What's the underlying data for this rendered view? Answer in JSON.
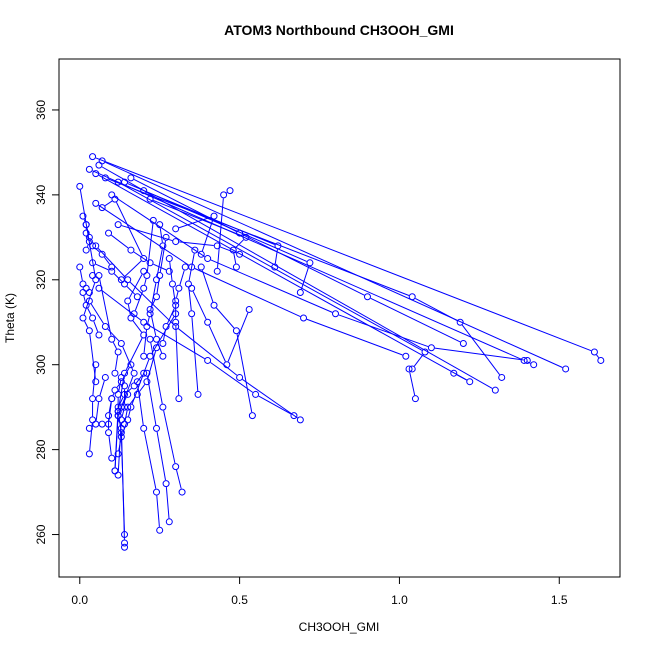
{
  "chart_data": {
    "type": "line",
    "title": "ATOM3 Northbound CH3OOH_GMI",
    "xlabel": "CH3OOH_GMI",
    "ylabel": "Theta (K)",
    "xlim": [
      -0.065,
      1.69
    ],
    "ylim": [
      250,
      372
    ],
    "x_ticks": [
      0.0,
      0.5,
      1.0,
      1.5
    ],
    "x_tick_labels": [
      "0.0",
      "0.5",
      "1.0",
      "1.5"
    ],
    "y_ticks": [
      260,
      280,
      300,
      320,
      340,
      360
    ],
    "y_tick_labels": [
      "260",
      "280",
      "300",
      "320",
      "340",
      "360"
    ],
    "grid": false,
    "series_color": "#0000ff",
    "marker": "open-circle",
    "segments": [
      {
        "points": [
          [
            0.04,
            349
          ],
          [
            1.61,
            303
          ],
          [
            1.63,
            301
          ]
        ]
      },
      {
        "points": [
          [
            0.07,
            348
          ],
          [
            1.52,
            299
          ]
        ]
      },
      {
        "points": [
          [
            0.03,
            346
          ],
          [
            1.39,
            301
          ],
          [
            1.42,
            300
          ]
        ]
      },
      {
        "points": [
          [
            0.06,
            347
          ],
          [
            1.3,
            294
          ]
        ]
      },
      {
        "points": [
          [
            0.05,
            345
          ],
          [
            1.22,
            296
          ],
          [
            1.17,
            298
          ]
        ]
      },
      {
        "points": [
          [
            0.08,
            344
          ],
          [
            1.04,
            316
          ],
          [
            1.19,
            310
          ],
          [
            1.32,
            297
          ]
        ]
      },
      {
        "points": [
          [
            0.12,
            343
          ],
          [
            1.08,
            303
          ],
          [
            1.04,
            299
          ],
          [
            1.03,
            299
          ],
          [
            1.05,
            292
          ]
        ]
      },
      {
        "points": [
          [
            0.14,
            343
          ],
          [
            0.72,
            324
          ],
          [
            0.69,
            317
          ]
        ]
      },
      {
        "points": [
          [
            0.2,
            341
          ],
          [
            0.62,
            328
          ],
          [
            0.61,
            323
          ]
        ]
      },
      {
        "points": [
          [
            0.22,
            339
          ],
          [
            0.52,
            330
          ],
          [
            0.48,
            327
          ],
          [
            0.49,
            323
          ]
        ]
      },
      {
        "points": [
          [
            0.3,
            332
          ],
          [
            0.42,
            335
          ],
          [
            0.38,
            326
          ]
        ]
      },
      {
        "points": [
          [
            0.47,
            341
          ],
          [
            0.45,
            340
          ],
          [
            0.43,
            322
          ]
        ]
      },
      {
        "points": [
          [
            0.0,
            342
          ],
          [
            0.05,
            320
          ],
          [
            0.01,
            311
          ],
          [
            0.03,
            308
          ],
          [
            0.05,
            296
          ]
        ]
      },
      {
        "points": [
          [
            0.01,
            335
          ],
          [
            0.02,
            333
          ],
          [
            0.03,
            330
          ],
          [
            0.04,
            328
          ],
          [
            0.07,
            326
          ],
          [
            0.1,
            323
          ]
        ]
      },
      {
        "points": [
          [
            0.0,
            323
          ],
          [
            0.01,
            319
          ],
          [
            0.02,
            318
          ],
          [
            0.03,
            317
          ]
        ]
      },
      {
        "points": [
          [
            0.07,
            337
          ],
          [
            0.11,
            339
          ],
          [
            0.2,
            325
          ],
          [
            0.13,
            320
          ]
        ]
      },
      {
        "points": [
          [
            0.04,
            321
          ],
          [
            0.06,
            321
          ],
          [
            0.1,
            306
          ],
          [
            0.12,
            303
          ],
          [
            0.11,
            298
          ]
        ]
      },
      {
        "points": [
          [
            0.2,
            322
          ],
          [
            0.15,
            315
          ],
          [
            0.16,
            311
          ],
          [
            0.2,
            307
          ],
          [
            0.14,
            298
          ],
          [
            0.12,
            289
          ]
        ]
      },
      {
        "points": [
          [
            0.23,
            334
          ],
          [
            0.21,
            321
          ],
          [
            0.2,
            318
          ],
          [
            0.17,
            312
          ]
        ]
      },
      {
        "points": [
          [
            0.25,
            333
          ],
          [
            0.26,
            328
          ],
          [
            0.24,
            320
          ],
          [
            0.22,
            312
          ],
          [
            0.21,
            309
          ],
          [
            0.2,
            302
          ]
        ]
      },
      {
        "points": [
          [
            0.27,
            330
          ],
          [
            0.25,
            321
          ],
          [
            0.24,
            316
          ],
          [
            0.22,
            313
          ],
          [
            0.24,
            306
          ],
          [
            0.26,
            302
          ]
        ]
      },
      {
        "points": [
          [
            0.28,
            325
          ],
          [
            0.29,
            319
          ],
          [
            0.3,
            314
          ],
          [
            0.27,
            309
          ],
          [
            0.26,
            305
          ]
        ]
      },
      {
        "points": [
          [
            0.33,
            323
          ],
          [
            0.31,
            318
          ],
          [
            0.3,
            315
          ],
          [
            0.3,
            310
          ],
          [
            0.31,
            292
          ]
        ]
      },
      {
        "points": [
          [
            0.36,
            327
          ],
          [
            0.34,
            319
          ],
          [
            0.35,
            312
          ],
          [
            0.37,
            293
          ]
        ]
      },
      {
        "points": [
          [
            0.38,
            323
          ],
          [
            0.42,
            314
          ],
          [
            0.49,
            308
          ],
          [
            0.54,
            288
          ]
        ]
      },
      {
        "points": [
          [
            0.35,
            318
          ],
          [
            0.4,
            310
          ],
          [
            0.46,
            300
          ],
          [
            0.53,
            313
          ]
        ]
      },
      {
        "points": [
          [
            0.3,
            312
          ],
          [
            0.22,
            302
          ],
          [
            0.16,
            290
          ],
          [
            0.15,
            287
          ],
          [
            0.13,
            283
          ],
          [
            0.12,
            279
          ]
        ]
      },
      {
        "points": [
          [
            0.24,
            304
          ],
          [
            0.21,
            296
          ],
          [
            0.18,
            293
          ],
          [
            0.15,
            290
          ],
          [
            0.14,
            286
          ]
        ]
      },
      {
        "points": [
          [
            0.2,
            298
          ],
          [
            0.17,
            295
          ],
          [
            0.14,
            293
          ],
          [
            0.12,
            290
          ],
          [
            0.11,
            275
          ]
        ]
      },
      {
        "points": [
          [
            0.16,
            300
          ],
          [
            0.13,
            296
          ],
          [
            0.11,
            294
          ],
          [
            0.1,
            292
          ],
          [
            0.09,
            286
          ],
          [
            0.07,
            286
          ]
        ]
      },
      {
        "points": [
          [
            0.15,
            293
          ],
          [
            0.13,
            290
          ],
          [
            0.12,
            288
          ],
          [
            0.13,
            285
          ],
          [
            0.14,
            258
          ],
          [
            0.14,
            257
          ]
        ]
      },
      {
        "points": [
          [
            0.13,
            297
          ],
          [
            0.12,
            293
          ],
          [
            0.12,
            289
          ],
          [
            0.13,
            284
          ],
          [
            0.14,
            260
          ]
        ]
      },
      {
        "points": [
          [
            0.14,
            295
          ],
          [
            0.14,
            290
          ],
          [
            0.13,
            287
          ],
          [
            0.12,
            274
          ]
        ]
      },
      {
        "points": [
          [
            0.18,
            296
          ],
          [
            0.2,
            285
          ],
          [
            0.24,
            270
          ],
          [
            0.25,
            261
          ]
        ]
      },
      {
        "points": [
          [
            0.21,
            298
          ],
          [
            0.24,
            285
          ],
          [
            0.27,
            272
          ],
          [
            0.28,
            263
          ]
        ]
      },
      {
        "points": [
          [
            0.22,
            306
          ],
          [
            0.26,
            290
          ],
          [
            0.3,
            276
          ],
          [
            0.32,
            270
          ]
        ]
      },
      {
        "points": [
          [
            0.05,
            300
          ],
          [
            0.04,
            292
          ],
          [
            0.04,
            287
          ],
          [
            0.03,
            279
          ]
        ]
      },
      {
        "points": [
          [
            0.08,
            297
          ],
          [
            0.06,
            292
          ],
          [
            0.05,
            286
          ],
          [
            0.03,
            285
          ]
        ]
      },
      {
        "points": [
          [
            0.1,
            292
          ],
          [
            0.09,
            288
          ],
          [
            0.09,
            284
          ],
          [
            0.1,
            278
          ]
        ]
      },
      {
        "points": [
          [
            0.05,
            328
          ],
          [
            0.15,
            320
          ],
          [
            0.3,
            309
          ],
          [
            0.5,
            297
          ],
          [
            0.69,
            287
          ]
        ]
      },
      {
        "points": [
          [
            0.06,
            318
          ],
          [
            0.2,
            310
          ],
          [
            0.4,
            301
          ],
          [
            0.55,
            293
          ],
          [
            0.67,
            288
          ]
        ]
      },
      {
        "points": [
          [
            0.03,
            315
          ],
          [
            0.08,
            309
          ],
          [
            0.13,
            305
          ],
          [
            0.17,
            298
          ],
          [
            0.12,
            288
          ],
          [
            0.11,
            275
          ]
        ]
      },
      {
        "points": [
          [
            0.16,
            344
          ],
          [
            0.5,
            331
          ],
          [
            0.9,
            316
          ],
          [
            1.2,
            305
          ]
        ]
      },
      {
        "points": [
          [
            0.1,
            340
          ],
          [
            0.4,
            325
          ],
          [
            0.8,
            312
          ],
          [
            1.1,
            304
          ],
          [
            1.4,
            301
          ]
        ]
      },
      {
        "points": [
          [
            0.05,
            338
          ],
          [
            0.35,
            323
          ],
          [
            0.7,
            311
          ],
          [
            1.02,
            302
          ]
        ]
      },
      {
        "points": [
          [
            0.12,
            333
          ],
          [
            0.3,
            329
          ],
          [
            0.43,
            328
          ],
          [
            0.5,
            326
          ]
        ]
      },
      {
        "points": [
          [
            0.02,
            333
          ],
          [
            0.02,
            331
          ],
          [
            0.03,
            329
          ],
          [
            0.02,
            327
          ]
        ]
      },
      {
        "points": [
          [
            0.09,
            331
          ],
          [
            0.16,
            327
          ],
          [
            0.22,
            324
          ],
          [
            0.28,
            322
          ]
        ]
      },
      {
        "points": [
          [
            0.04,
            324
          ],
          [
            0.1,
            322
          ],
          [
            0.14,
            319
          ],
          [
            0.18,
            316
          ]
        ]
      },
      {
        "points": [
          [
            0.01,
            317
          ],
          [
            0.02,
            314
          ],
          [
            0.04,
            311
          ],
          [
            0.06,
            307
          ]
        ]
      }
    ]
  }
}
